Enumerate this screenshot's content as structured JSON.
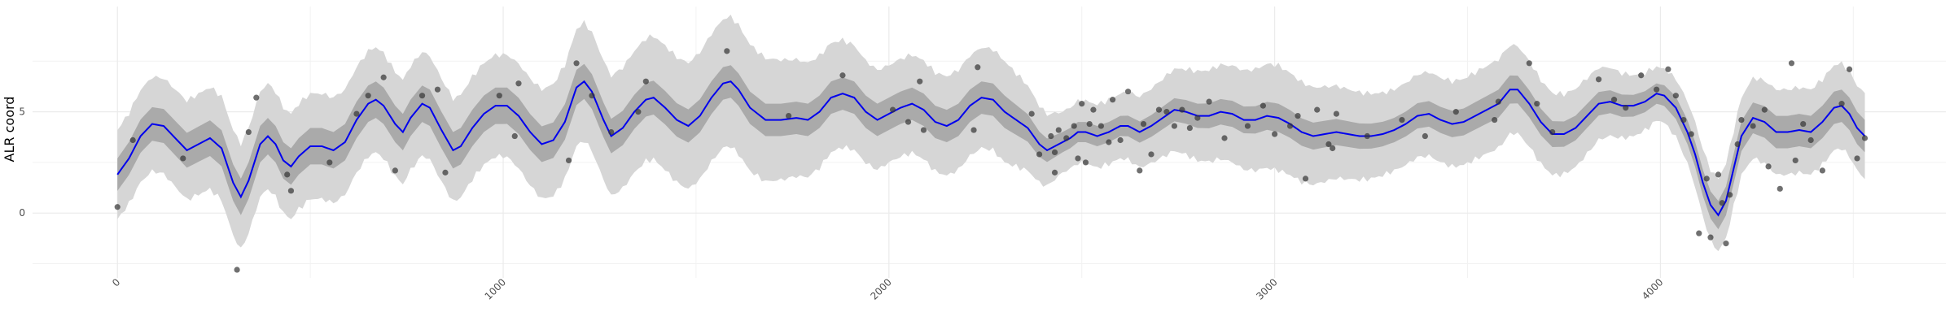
{
  "chart_data": {
    "type": "line",
    "ylabel": "ALR coord",
    "xlabel": "",
    "xlim": [
      -220,
      4740
    ],
    "ylim": [
      -3.2,
      10.2
    ],
    "x_ticks": [
      0,
      1000,
      2000,
      3000,
      4000
    ],
    "x_tick_labels": [
      "0",
      "1000",
      "2000",
      "3000",
      "4000"
    ],
    "y_ticks": [
      0,
      5
    ],
    "y_tick_labels": [
      "0",
      "5"
    ],
    "grid": true,
    "background": "#ffffff",
    "colors": {
      "mean_line": "#0000ee",
      "inner_band": "#aaaaaa",
      "outer_band": "#d6d6d6",
      "points": "#333333",
      "grid": "#ebebeb"
    },
    "mean_curve": [
      [
        0,
        1.9
      ],
      [
        30,
        2.7
      ],
      [
        60,
        3.8
      ],
      [
        90,
        4.4
      ],
      [
        120,
        4.3
      ],
      [
        150,
        3.7
      ],
      [
        180,
        3.1
      ],
      [
        210,
        3.4
      ],
      [
        240,
        3.7
      ],
      [
        270,
        3.2
      ],
      [
        300,
        1.5
      ],
      [
        320,
        0.8
      ],
      [
        340,
        1.6
      ],
      [
        370,
        3.4
      ],
      [
        390,
        3.8
      ],
      [
        410,
        3.4
      ],
      [
        430,
        2.6
      ],
      [
        450,
        2.3
      ],
      [
        470,
        2.8
      ],
      [
        500,
        3.3
      ],
      [
        530,
        3.3
      ],
      [
        560,
        3.1
      ],
      [
        590,
        3.5
      ],
      [
        620,
        4.6
      ],
      [
        650,
        5.4
      ],
      [
        670,
        5.6
      ],
      [
        690,
        5.3
      ],
      [
        720,
        4.4
      ],
      [
        740,
        4.0
      ],
      [
        760,
        4.7
      ],
      [
        790,
        5.4
      ],
      [
        810,
        5.2
      ],
      [
        840,
        4.1
      ],
      [
        870,
        3.1
      ],
      [
        890,
        3.3
      ],
      [
        920,
        4.2
      ],
      [
        950,
        4.9
      ],
      [
        980,
        5.3
      ],
      [
        1010,
        5.3
      ],
      [
        1040,
        4.8
      ],
      [
        1070,
        4.0
      ],
      [
        1100,
        3.4
      ],
      [
        1130,
        3.6
      ],
      [
        1160,
        4.5
      ],
      [
        1190,
        6.2
      ],
      [
        1210,
        6.5
      ],
      [
        1230,
        6.0
      ],
      [
        1260,
        4.6
      ],
      [
        1280,
        3.8
      ],
      [
        1310,
        4.2
      ],
      [
        1340,
        5.0
      ],
      [
        1370,
        5.6
      ],
      [
        1390,
        5.7
      ],
      [
        1420,
        5.2
      ],
      [
        1450,
        4.6
      ],
      [
        1480,
        4.3
      ],
      [
        1510,
        4.8
      ],
      [
        1540,
        5.7
      ],
      [
        1570,
        6.4
      ],
      [
        1590,
        6.5
      ],
      [
        1610,
        6.1
      ],
      [
        1640,
        5.2
      ],
      [
        1680,
        4.6
      ],
      [
        1720,
        4.6
      ],
      [
        1760,
        4.7
      ],
      [
        1790,
        4.6
      ],
      [
        1820,
        5.0
      ],
      [
        1850,
        5.7
      ],
      [
        1880,
        5.9
      ],
      [
        1910,
        5.7
      ],
      [
        1940,
        5.0
      ],
      [
        1970,
        4.6
      ],
      [
        2000,
        4.9
      ],
      [
        2030,
        5.2
      ],
      [
        2060,
        5.4
      ],
      [
        2090,
        5.1
      ],
      [
        2120,
        4.5
      ],
      [
        2150,
        4.3
      ],
      [
        2180,
        4.6
      ],
      [
        2210,
        5.3
      ],
      [
        2240,
        5.7
      ],
      [
        2270,
        5.6
      ],
      [
        2300,
        5.0
      ],
      [
        2330,
        4.6
      ],
      [
        2360,
        4.2
      ],
      [
        2390,
        3.4
      ],
      [
        2410,
        3.1
      ],
      [
        2440,
        3.4
      ],
      [
        2470,
        3.7
      ],
      [
        2490,
        4.0
      ],
      [
        2510,
        4.0
      ],
      [
        2540,
        3.8
      ],
      [
        2570,
        4.0
      ],
      [
        2600,
        4.3
      ],
      [
        2620,
        4.3
      ],
      [
        2650,
        4.0
      ],
      [
        2680,
        4.3
      ],
      [
        2710,
        4.7
      ],
      [
        2740,
        5.1
      ],
      [
        2770,
        5.0
      ],
      [
        2800,
        4.8
      ],
      [
        2830,
        4.8
      ],
      [
        2860,
        5.0
      ],
      [
        2890,
        4.9
      ],
      [
        2920,
        4.6
      ],
      [
        2950,
        4.6
      ],
      [
        2980,
        4.8
      ],
      [
        3010,
        4.7
      ],
      [
        3040,
        4.4
      ],
      [
        3070,
        4.0
      ],
      [
        3100,
        3.8
      ],
      [
        3130,
        3.9
      ],
      [
        3160,
        4.0
      ],
      [
        3190,
        3.9
      ],
      [
        3220,
        3.8
      ],
      [
        3250,
        3.8
      ],
      [
        3280,
        3.9
      ],
      [
        3310,
        4.1
      ],
      [
        3340,
        4.4
      ],
      [
        3370,
        4.8
      ],
      [
        3400,
        4.9
      ],
      [
        3430,
        4.6
      ],
      [
        3460,
        4.4
      ],
      [
        3490,
        4.5
      ],
      [
        3520,
        4.8
      ],
      [
        3550,
        5.1
      ],
      [
        3580,
        5.4
      ],
      [
        3610,
        6.1
      ],
      [
        3630,
        6.1
      ],
      [
        3660,
        5.4
      ],
      [
        3690,
        4.5
      ],
      [
        3720,
        3.9
      ],
      [
        3750,
        3.9
      ],
      [
        3780,
        4.2
      ],
      [
        3810,
        4.8
      ],
      [
        3840,
        5.4
      ],
      [
        3870,
        5.5
      ],
      [
        3900,
        5.3
      ],
      [
        3930,
        5.3
      ],
      [
        3960,
        5.5
      ],
      [
        3990,
        5.9
      ],
      [
        4010,
        5.8
      ],
      [
        4040,
        5.2
      ],
      [
        4070,
        4.0
      ],
      [
        4090,
        2.9
      ],
      [
        4110,
        1.5
      ],
      [
        4130,
        0.4
      ],
      [
        4150,
        -0.1
      ],
      [
        4170,
        0.6
      ],
      [
        4190,
        2.2
      ],
      [
        4210,
        3.8
      ],
      [
        4240,
        4.7
      ],
      [
        4270,
        4.5
      ],
      [
        4300,
        4.0
      ],
      [
        4330,
        4.0
      ],
      [
        4360,
        4.1
      ],
      [
        4390,
        4.0
      ],
      [
        4420,
        4.5
      ],
      [
        4450,
        5.2
      ],
      [
        4470,
        5.3
      ],
      [
        4490,
        4.9
      ],
      [
        4510,
        4.2
      ],
      [
        4530,
        3.8
      ]
    ],
    "inner_band_halfwidth": [
      [
        0,
        0.8
      ],
      [
        300,
        0.9
      ],
      [
        650,
        0.9
      ],
      [
        1000,
        0.9
      ],
      [
        1600,
        0.8
      ],
      [
        2300,
        0.8
      ],
      [
        2450,
        0.5
      ],
      [
        2600,
        0.5
      ],
      [
        2800,
        0.6
      ],
      [
        3000,
        0.7
      ],
      [
        3300,
        0.6
      ],
      [
        3600,
        0.7
      ],
      [
        4000,
        0.5
      ],
      [
        4150,
        0.7
      ],
      [
        4300,
        0.8
      ],
      [
        4530,
        0.8
      ]
    ],
    "outer_band_halfwidth": [
      [
        0,
        2.2
      ],
      [
        300,
        2.6
      ],
      [
        650,
        2.6
      ],
      [
        1000,
        2.5
      ],
      [
        1200,
        2.9
      ],
      [
        1600,
        3.2
      ],
      [
        2000,
        2.4
      ],
      [
        2300,
        2.5
      ],
      [
        2450,
        1.5
      ],
      [
        2600,
        1.6
      ],
      [
        2800,
        2.2
      ],
      [
        3000,
        2.6
      ],
      [
        3300,
        2.0
      ],
      [
        3600,
        2.2
      ],
      [
        3800,
        1.9
      ],
      [
        4000,
        1.3
      ],
      [
        4150,
        1.8
      ],
      [
        4300,
        2.1
      ],
      [
        4530,
        2.1
      ]
    ],
    "points": [
      [
        0,
        0.3
      ],
      [
        40,
        3.6
      ],
      [
        170,
        2.7
      ],
      [
        310,
        -2.8
      ],
      [
        340,
        4.0
      ],
      [
        360,
        5.7
      ],
      [
        440,
        1.9
      ],
      [
        450,
        1.1
      ],
      [
        550,
        2.5
      ],
      [
        620,
        4.9
      ],
      [
        650,
        5.8
      ],
      [
        690,
        6.7
      ],
      [
        720,
        2.1
      ],
      [
        790,
        5.8
      ],
      [
        830,
        6.1
      ],
      [
        850,
        2.0
      ],
      [
        990,
        5.8
      ],
      [
        1030,
        3.8
      ],
      [
        1040,
        6.4
      ],
      [
        1170,
        2.6
      ],
      [
        1190,
        7.4
      ],
      [
        1230,
        5.8
      ],
      [
        1280,
        4.0
      ],
      [
        1350,
        5.0
      ],
      [
        1370,
        6.5
      ],
      [
        1580,
        8.0
      ],
      [
        1740,
        4.8
      ],
      [
        1880,
        6.8
      ],
      [
        2010,
        5.1
      ],
      [
        2050,
        4.5
      ],
      [
        2080,
        6.5
      ],
      [
        2090,
        4.1
      ],
      [
        2220,
        4.1
      ],
      [
        2230,
        7.2
      ],
      [
        2370,
        4.9
      ],
      [
        2390,
        2.9
      ],
      [
        2420,
        3.8
      ],
      [
        2430,
        2.0
      ],
      [
        2430,
        3.0
      ],
      [
        2440,
        4.1
      ],
      [
        2460,
        3.7
      ],
      [
        2480,
        4.3
      ],
      [
        2490,
        2.7
      ],
      [
        2500,
        5.4
      ],
      [
        2510,
        2.5
      ],
      [
        2520,
        4.4
      ],
      [
        2530,
        5.1
      ],
      [
        2550,
        4.3
      ],
      [
        2570,
        3.5
      ],
      [
        2580,
        5.6
      ],
      [
        2600,
        3.6
      ],
      [
        2620,
        6.0
      ],
      [
        2650,
        2.1
      ],
      [
        2660,
        4.4
      ],
      [
        2680,
        2.9
      ],
      [
        2700,
        5.1
      ],
      [
        2720,
        5.0
      ],
      [
        2740,
        4.3
      ],
      [
        2760,
        5.1
      ],
      [
        2780,
        4.2
      ],
      [
        2800,
        4.7
      ],
      [
        2830,
        5.5
      ],
      [
        2870,
        3.7
      ],
      [
        2930,
        4.3
      ],
      [
        2970,
        5.3
      ],
      [
        3000,
        3.9
      ],
      [
        3040,
        4.3
      ],
      [
        3060,
        4.8
      ],
      [
        3080,
        1.7
      ],
      [
        3110,
        5.1
      ],
      [
        3140,
        3.4
      ],
      [
        3150,
        3.2
      ],
      [
        3160,
        4.9
      ],
      [
        3240,
        3.8
      ],
      [
        3330,
        4.6
      ],
      [
        3390,
        3.8
      ],
      [
        3470,
        5.0
      ],
      [
        3570,
        4.6
      ],
      [
        3580,
        5.5
      ],
      [
        3660,
        7.4
      ],
      [
        3680,
        5.4
      ],
      [
        3720,
        4.0
      ],
      [
        3840,
        6.6
      ],
      [
        3880,
        5.6
      ],
      [
        3910,
        5.2
      ],
      [
        3950,
        6.8
      ],
      [
        3990,
        6.1
      ],
      [
        4020,
        7.1
      ],
      [
        4040,
        5.8
      ],
      [
        4060,
        4.6
      ],
      [
        4080,
        3.9
      ],
      [
        4100,
        -1.0
      ],
      [
        4120,
        1.7
      ],
      [
        4130,
        -1.2
      ],
      [
        4150,
        1.9
      ],
      [
        4160,
        0.5
      ],
      [
        4170,
        -1.5
      ],
      [
        4180,
        0.9
      ],
      [
        4200,
        3.4
      ],
      [
        4210,
        4.6
      ],
      [
        4240,
        4.3
      ],
      [
        4270,
        5.1
      ],
      [
        4280,
        2.3
      ],
      [
        4310,
        1.2
      ],
      [
        4340,
        7.4
      ],
      [
        4350,
        2.6
      ],
      [
        4370,
        4.4
      ],
      [
        4390,
        3.6
      ],
      [
        4420,
        2.1
      ],
      [
        4470,
        5.4
      ],
      [
        4490,
        7.1
      ],
      [
        4510,
        2.7
      ],
      [
        4530,
        3.7
      ]
    ]
  }
}
